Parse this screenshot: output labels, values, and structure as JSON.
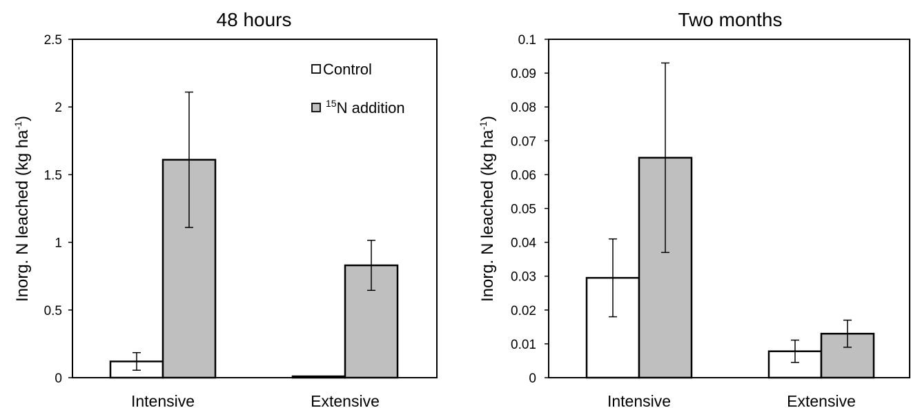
{
  "colors": {
    "control_fill": "#ffffff",
    "addition_fill": "#bfbfbf",
    "stroke": "#000000"
  },
  "chart_data": [
    {
      "type": "bar",
      "title": "48 hours",
      "ylabel_main": "Inorg. N leached (kg ha",
      "ylabel_sup": "-1",
      "ylabel_end": ")",
      "ylim": [
        0,
        2.5
      ],
      "yticks": [
        0,
        0.5,
        1,
        1.5,
        2,
        2.5
      ],
      "ytick_labels": [
        "0",
        "0.5",
        "1",
        "1.5",
        "2",
        "2.5"
      ],
      "categories": [
        "Intensive",
        "Extensive"
      ],
      "grid": false,
      "legend": {
        "placement": "top-right",
        "entries": [
          {
            "main": "Control",
            "sup": ""
          },
          {
            "main": "N addition",
            "sup": "15"
          }
        ]
      },
      "series": [
        {
          "values": [
            0.12,
            0.01
          ],
          "error": [
            0.065,
            0.0
          ]
        },
        {
          "values": [
            1.61,
            0.83
          ],
          "error": [
            0.5,
            0.185
          ]
        }
      ]
    },
    {
      "type": "bar",
      "title": "Two months",
      "ylabel_main": "Inorg. N leached (kg ha",
      "ylabel_sup": "-1",
      "ylabel_end": ")",
      "ylim": [
        0,
        0.1
      ],
      "yticks": [
        0,
        0.01,
        0.02,
        0.03,
        0.04,
        0.05,
        0.06,
        0.07,
        0.08,
        0.09,
        0.1
      ],
      "ytick_labels": [
        "0",
        "0.01",
        "0.02",
        "0.03",
        "0.04",
        "0.05",
        "0.06",
        "0.07",
        "0.08",
        "0.09",
        "0.1"
      ],
      "categories": [
        "Intensive",
        "Extensive"
      ],
      "grid": false,
      "series": [
        {
          "values": [
            0.0295,
            0.0078
          ],
          "error": [
            0.0115,
            0.0033
          ]
        },
        {
          "values": [
            0.065,
            0.013
          ],
          "error": [
            0.028,
            0.004
          ]
        }
      ]
    }
  ]
}
